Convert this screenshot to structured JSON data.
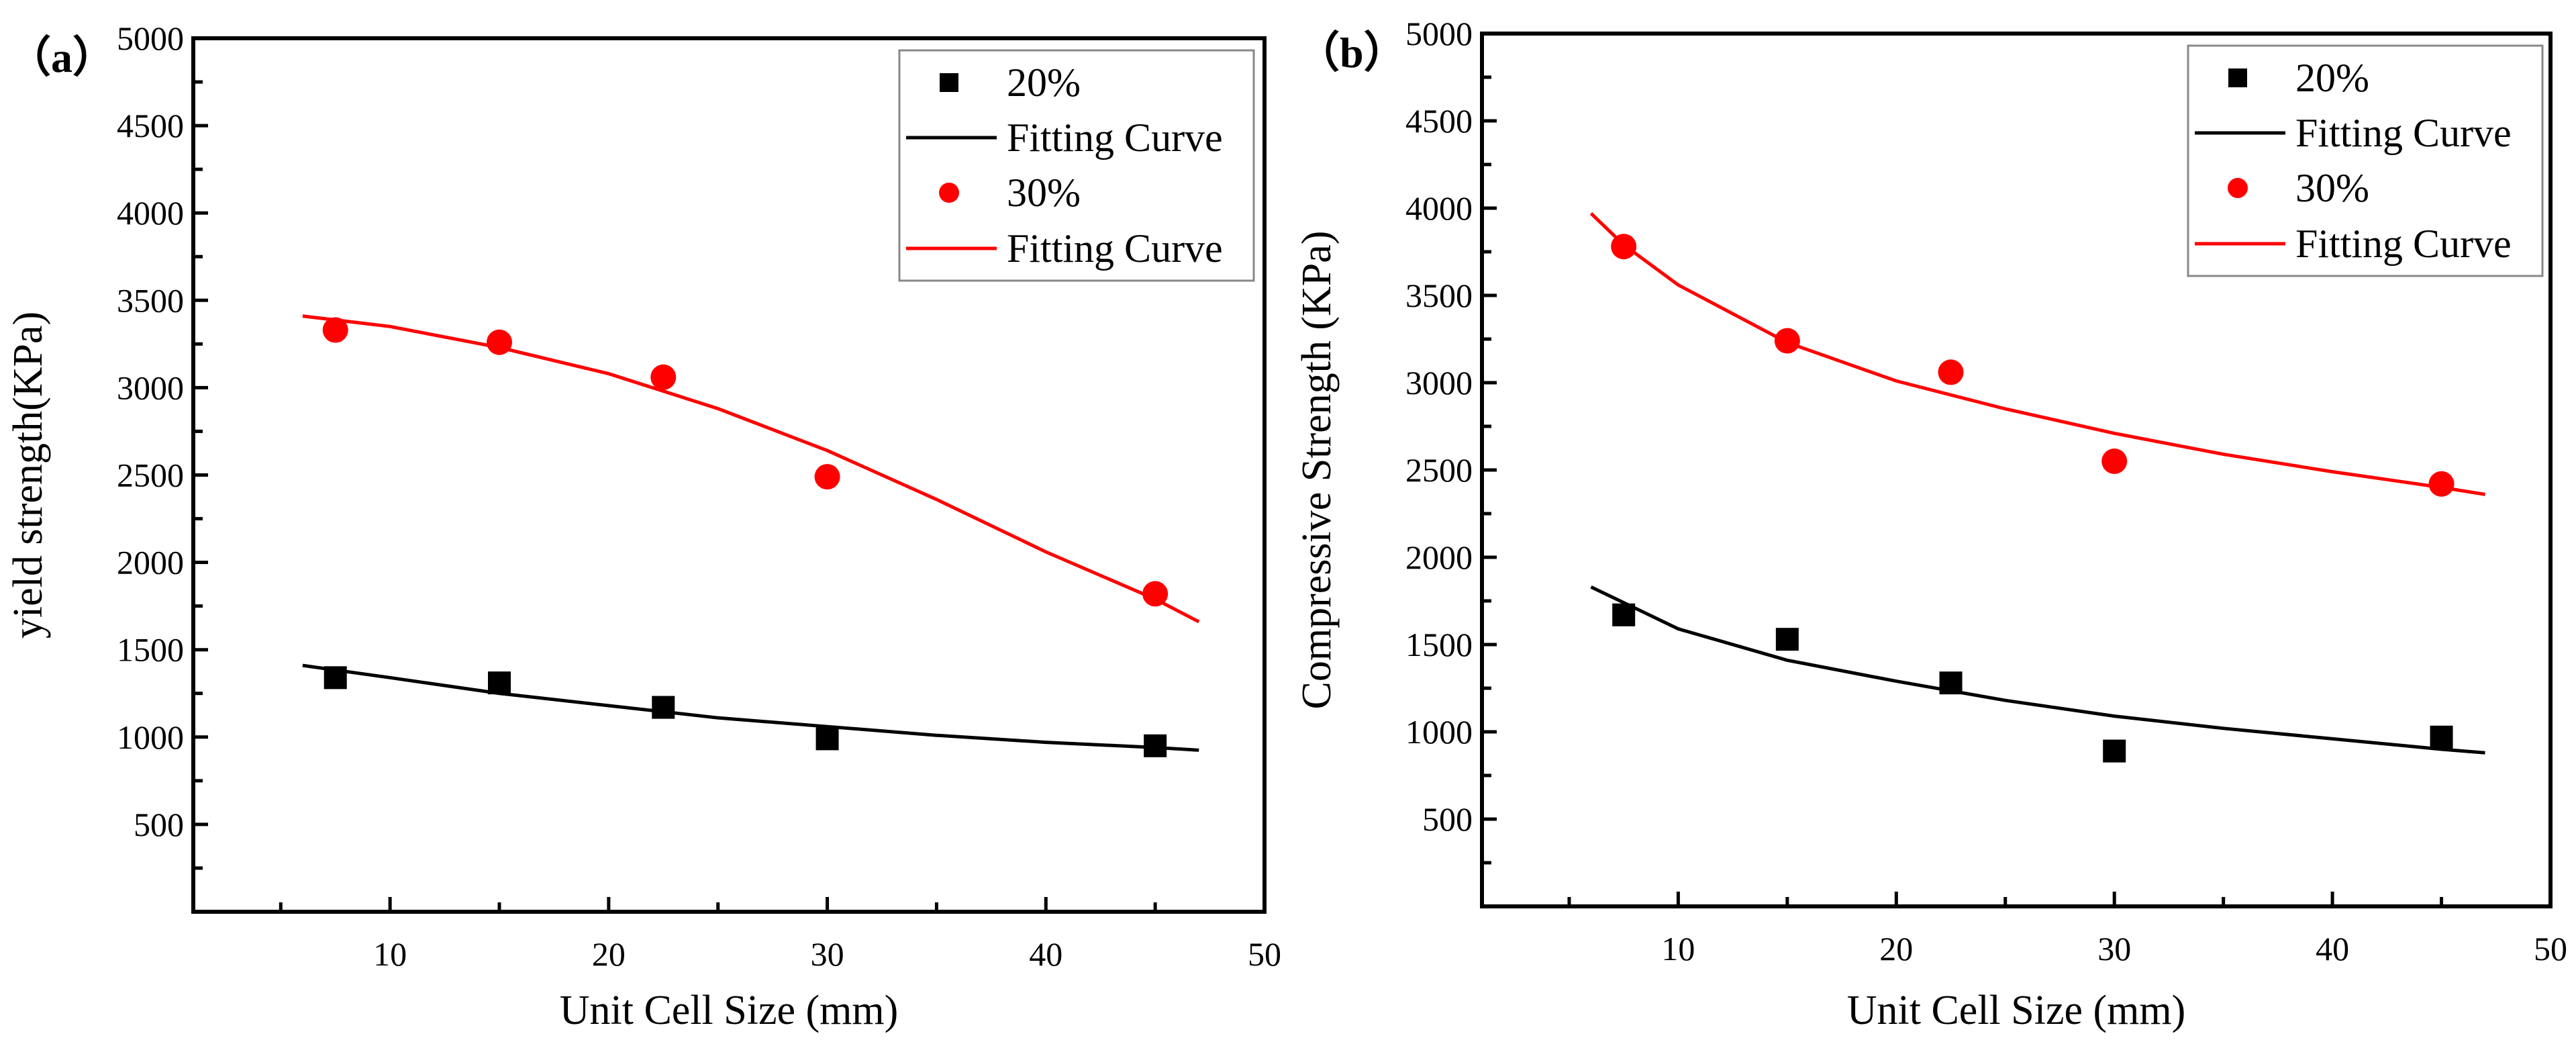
{
  "chart_data": [
    {
      "type": "scatter",
      "panel_label": "（a）",
      "xlabel": "Unit Cell Size (mm)",
      "ylabel": "yield strength(KPa)",
      "xlim": [
        1,
        50
      ],
      "ylim": [
        0,
        5000
      ],
      "xticks": [
        10,
        20,
        30,
        40,
        50
      ],
      "yticks": [
        500,
        1000,
        1500,
        2000,
        2500,
        3000,
        3500,
        4000,
        4500,
        5000
      ],
      "grid": false,
      "legend_position": "top-right",
      "legend": [
        "20%",
        "Fitting Curve",
        "30%",
        "Fitting Curve"
      ],
      "series": [
        {
          "name": "20%",
          "marker": "square",
          "color": "#000000",
          "x": [
            7.5,
            15,
            22.5,
            30,
            45
          ],
          "y": [
            1340,
            1310,
            1170,
            990,
            950
          ],
          "fit": {
            "x": [
              6,
              10,
              15,
              20,
              25,
              30,
              35,
              40,
              45,
              47
            ],
            "y": [
              1410,
              1340,
              1250,
              1180,
              1110,
              1060,
              1010,
              970,
              940,
              925
            ]
          }
        },
        {
          "name": "30%",
          "marker": "circle",
          "color": "#ff0000",
          "x": [
            7.5,
            15,
            22.5,
            30,
            45
          ],
          "y": [
            3330,
            3260,
            3060,
            2490,
            1820
          ],
          "fit": {
            "x": [
              6,
              10,
              15,
              20,
              25,
              30,
              35,
              40,
              45,
              47
            ],
            "y": [
              3410,
              3350,
              3230,
              3080,
              2880,
              2640,
              2360,
              2060,
              1790,
              1660
            ]
          }
        }
      ]
    },
    {
      "type": "scatter",
      "panel_label": "（b）",
      "xlabel": "Unit Cell Size (mm)",
      "ylabel": "Compressive Strength (KPa)",
      "xlim": [
        1,
        50
      ],
      "ylim": [
        0,
        5000
      ],
      "xticks": [
        10,
        20,
        30,
        40,
        50
      ],
      "yticks": [
        500,
        1000,
        1500,
        2000,
        2500,
        3000,
        3500,
        4000,
        4500,
        5000
      ],
      "grid": false,
      "legend_position": "top-right",
      "legend": [
        "20%",
        "Fitting Curve",
        "30%",
        "Fitting Curve"
      ],
      "series": [
        {
          "name": "20%",
          "marker": "square",
          "color": "#000000",
          "x": [
            7.5,
            15,
            22.5,
            30,
            45
          ],
          "y": [
            1670,
            1530,
            1280,
            890,
            970
          ],
          "fit": {
            "x": [
              6,
              10,
              15,
              20,
              25,
              30,
              35,
              40,
              45,
              47
            ],
            "y": [
              1830,
              1590,
              1410,
              1290,
              1180,
              1090,
              1020,
              960,
              900,
              880
            ]
          }
        },
        {
          "name": "30%",
          "marker": "circle",
          "color": "#ff0000",
          "x": [
            7.5,
            15,
            22.5,
            30,
            45
          ],
          "y": [
            3780,
            3240,
            3060,
            2550,
            2420
          ],
          "fit": {
            "x": [
              6,
              7.5,
              10,
              15,
              20,
              25,
              30,
              35,
              40,
              45,
              47
            ],
            "y": [
              3970,
              3790,
              3560,
              3230,
              3010,
              2850,
              2710,
              2590,
              2490,
              2400,
              2360
            ]
          }
        }
      ]
    }
  ]
}
